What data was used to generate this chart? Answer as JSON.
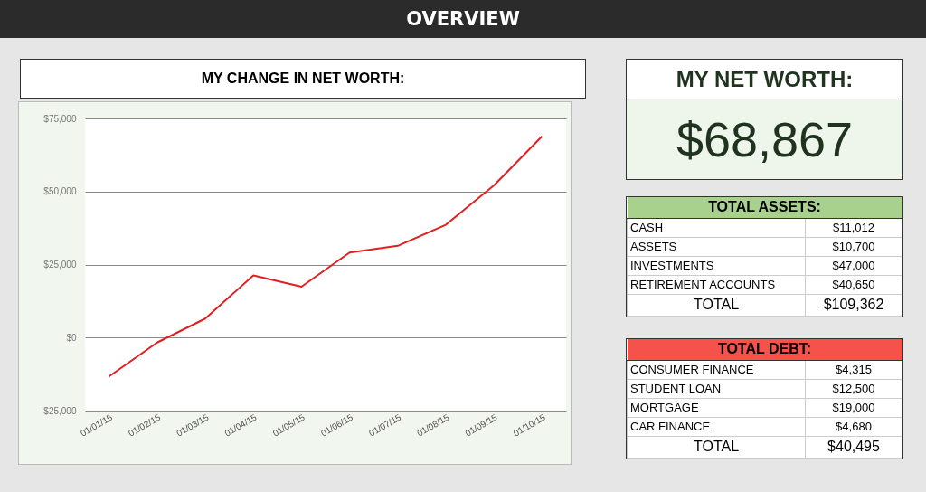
{
  "chart_data": [
    {
      "type": "other",
      "title": "OVERVIEW"
    },
    {
      "type": "line",
      "title": "MY CHANGE IN NET WORTH:",
      "categories": [
        "01/01/15",
        "01/02/15",
        "01/03/15",
        "01/04/15",
        "01/05/15",
        "01/06/15",
        "01/07/15",
        "01/08/15",
        "01/09/15",
        "01/10/15"
      ],
      "series": [
        {
          "color": "#e02020",
          "values": [
            -13300,
            -1700,
            6500,
            21300,
            17400,
            29100,
            31400,
            38600,
            52100,
            68900
          ]
        }
      ],
      "ylim": [
        -25000,
        75000
      ],
      "yticks": [
        {
          "value": -25000,
          "label": "-$25,000"
        },
        {
          "value": 0,
          "label": "$0"
        },
        {
          "value": 25000,
          "label": "$25,000"
        },
        {
          "value": 50000,
          "label": "$50,000"
        },
        {
          "value": 75000,
          "label": "$75,000"
        }
      ],
      "grid": "y",
      "marker": "none",
      "line_style": "solid"
    },
    {
      "type": "other",
      "title": "MY NET WORTH:",
      "annotations": [
        "$68,867"
      ]
    },
    {
      "type": "other",
      "title": "TOTAL ASSETS:",
      "annotations": [
        "CASH",
        "$11,012",
        "ASSETS",
        "$10,700",
        "INVESTMENTS",
        "$47,000",
        "RETIREMENT ACCOUNTS",
        "$40,650",
        "TOTAL",
        "$109,362"
      ]
    },
    {
      "type": "other",
      "title": "TOTAL DEBT:",
      "annotations": [
        "CONSUMER FINANCE",
        "$4,315",
        "STUDENT LOAN",
        "$12,500",
        "MORTGAGE",
        "$19,000",
        "CAR FINANCE",
        "$4,680",
        "TOTAL",
        "$40,495"
      ]
    }
  ]
}
